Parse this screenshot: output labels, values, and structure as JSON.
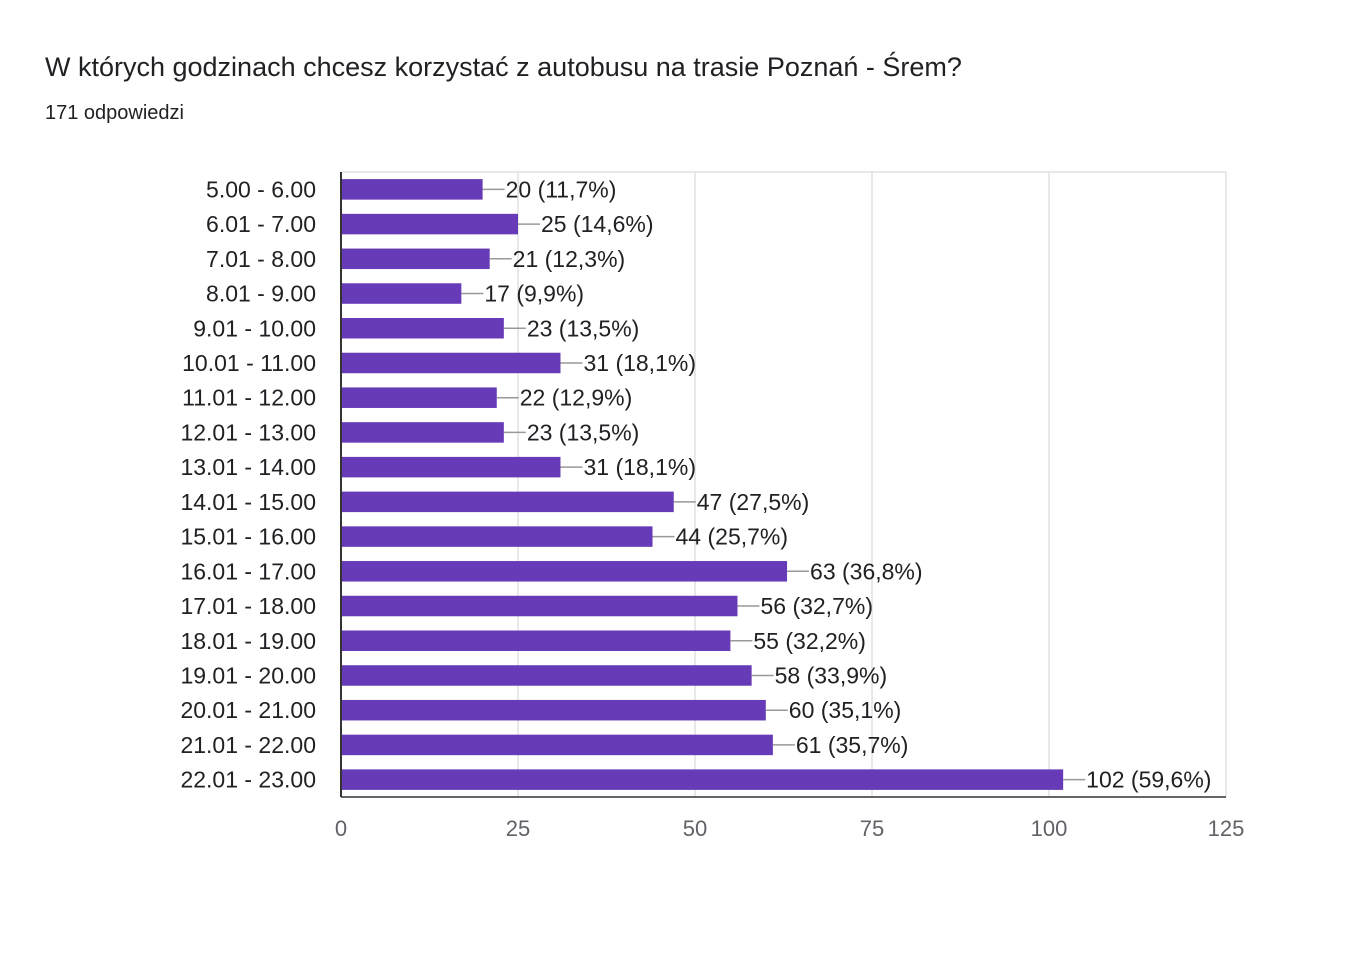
{
  "header": {
    "title": "W których godzinach chcesz korzystać z autobusu na trasie Poznań - Śrem?",
    "responses": "171 odpowiedzi"
  },
  "colors": {
    "bar": "#673ab7",
    "grid": "#e0e0e0",
    "axis": "#333333",
    "text": "#202124",
    "tick": "#5f6368",
    "leader": "#999999"
  },
  "chart_data": {
    "type": "bar",
    "orientation": "horizontal",
    "categories": [
      "5.00 - 6.00",
      "6.01 - 7.00",
      "7.01 - 8.00",
      "8.01 - 9.00",
      "9.01 - 10.00",
      "10.01 - 11.00",
      "11.01 - 12.00",
      "12.01 - 13.00",
      "13.01 - 14.00",
      "14.01 - 15.00",
      "15.01 - 16.00",
      "16.01 - 17.00",
      "17.01 - 18.00",
      "18.01 - 19.00",
      "19.01 - 20.00",
      "20.01 - 21.00",
      "21.01 - 22.00",
      "22.01 - 23.00"
    ],
    "values": [
      20,
      25,
      21,
      17,
      23,
      31,
      22,
      23,
      31,
      47,
      44,
      63,
      56,
      55,
      58,
      60,
      61,
      102
    ],
    "labels": [
      "20 (11,7%)",
      "25 (14,6%)",
      "21 (12,3%)",
      "17 (9,9%)",
      "23 (13,5%)",
      "31 (18,1%)",
      "22 (12,9%)",
      "23 (13,5%)",
      "31 (18,1%)",
      "47 (27,5%)",
      "44 (25,7%)",
      "63 (36,8%)",
      "56 (32,7%)",
      "55 (32,2%)",
      "58 (33,9%)",
      "60 (35,1%)",
      "61 (35,7%)",
      "102 (59,6%)"
    ],
    "xlim": [
      0,
      125
    ],
    "xticks": [
      "0",
      "25",
      "50",
      "75",
      "100",
      "125"
    ],
    "grid": true
  }
}
